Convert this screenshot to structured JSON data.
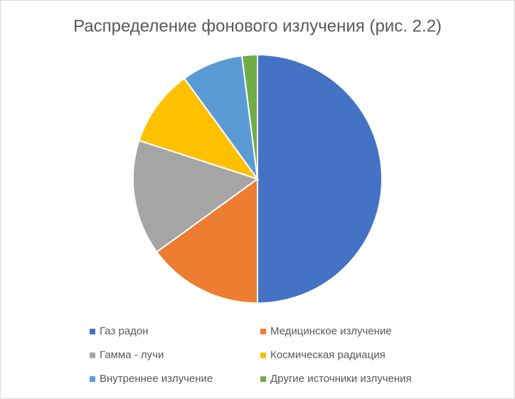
{
  "chart_data": {
    "type": "pie",
    "title": "Распределение фонового излучения (рис. 2.2)",
    "categories": [
      "Газ радон",
      "Медицинское излучение",
      "Гамма - лучи",
      "Космическая радиация",
      "Внутреннее излучение",
      "Другие источники излучения"
    ],
    "values": [
      50,
      15,
      15,
      10,
      8,
      2
    ],
    "colors": [
      "#4472c4",
      "#ed7d31",
      "#a5a5a5",
      "#ffc000",
      "#5b9bd5",
      "#70ad47"
    ],
    "legend": "bottom"
  }
}
